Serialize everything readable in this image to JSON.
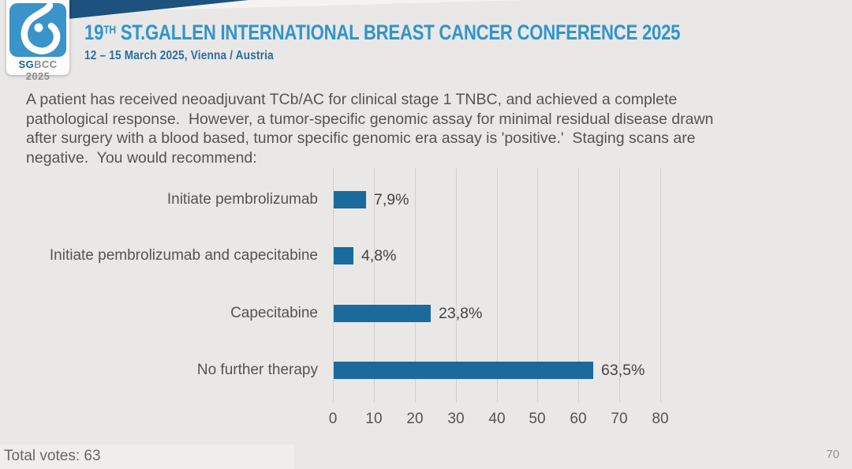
{
  "header": {
    "logo": {
      "sg": "SG",
      "rest": "BCC 2025"
    },
    "title_prefix": "19",
    "title_sup": "TH",
    "title_rest": " ST.GALLEN INTERNATIONAL BREAST CANCER CONFERENCE 2025",
    "subtitle": "12 – 15 March 2025, Vienna / Austria"
  },
  "question": {
    "lines": [
      "A patient has received neoadjuvant TCb/AC for clinical stage 1 TNBC, and achieved a complete",
      "pathological response.  However, a tumor-specific genomic assay for minimal residual disease drawn",
      "after surgery with a blood based, tumor specific genomic era assay is 'positive.'  Staging scans are",
      "negative.  You would recommend:"
    ]
  },
  "chart_data": {
    "type": "bar",
    "orientation": "horizontal",
    "categories": [
      "Initiate pembrolizumab",
      "Initiate pembrolizumab and capecitabine",
      "Capecitabine",
      "No further therapy"
    ],
    "values": [
      7.9,
      4.8,
      23.8,
      63.5
    ],
    "value_labels": [
      "7,9%",
      "4,8%",
      "23,8%",
      "63,5%"
    ],
    "title": "",
    "xlabel": "",
    "ylabel": "",
    "xlim": [
      0,
      80
    ],
    "xticks": [
      0,
      10,
      20,
      30,
      40,
      50,
      60,
      70,
      80
    ],
    "grid": true,
    "legend": false,
    "bar_color": "#1a6a9d"
  },
  "footer": {
    "total_votes": "Total votes: 63",
    "page_number": "70"
  },
  "colors": {
    "background": "#e9e8e6",
    "accent_title": "#3094cc",
    "accent_subtitle": "#2b6da1",
    "wedge_navy": "#1c527d",
    "logo_blue": "#3a93c9",
    "bar_blue": "#1a6a9d",
    "text_gray": "#565350",
    "grid_gray": "#d3d1cf"
  }
}
